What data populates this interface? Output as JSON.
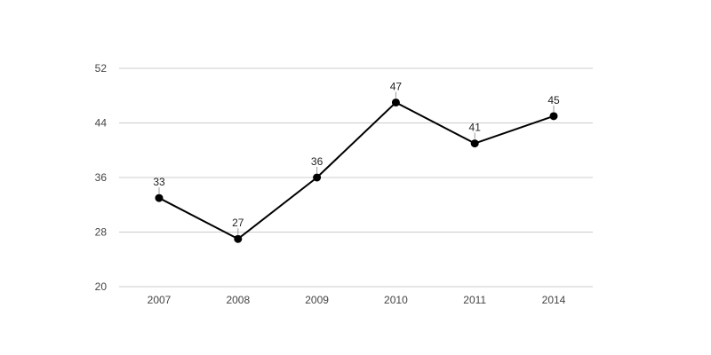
{
  "chart_data": {
    "type": "line",
    "title": "",
    "xlabel": "",
    "ylabel": "",
    "categories": [
      "2007",
      "2008",
      "2009",
      "2010",
      "2011",
      "2014"
    ],
    "series": [
      {
        "values": [
          33,
          27,
          36,
          47,
          41,
          45
        ],
        "data_labels": [
          "33",
          "27",
          "36",
          "47",
          "41",
          "45"
        ],
        "color": "#000000"
      }
    ],
    "ylim": [
      20,
      52
    ],
    "y_ticks": [
      20,
      28,
      36,
      44,
      52
    ],
    "y_tick_labels": [
      "20",
      "28",
      "36",
      "44",
      "52"
    ],
    "grid": true,
    "grid_color": "#cccccc",
    "legend": "none"
  }
}
